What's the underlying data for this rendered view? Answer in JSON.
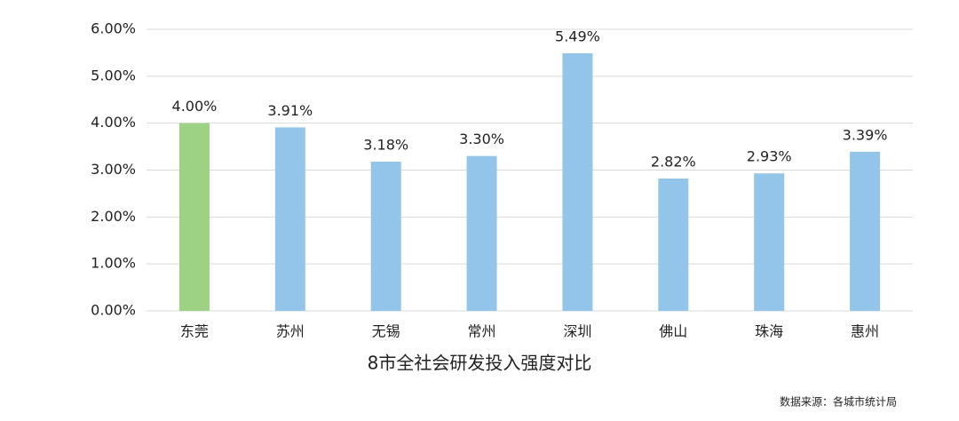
{
  "chart_data": {
    "type": "bar",
    "title": "8市全社会研发投入强度对比",
    "source": "数据来源：各城市统计局",
    "categories": [
      "东莞",
      "苏州",
      "无锡",
      "常州",
      "深圳",
      "佛山",
      "珠海",
      "惠州"
    ],
    "values": [
      4.0,
      3.91,
      3.18,
      3.3,
      5.49,
      2.82,
      2.93,
      3.39
    ],
    "value_labels": [
      "4.00%",
      "3.91%",
      "3.18%",
      "3.30%",
      "5.49%",
      "2.82%",
      "2.93%",
      "3.39%"
    ],
    "colors": [
      "#9dd183",
      "#93c5ea",
      "#93c5ea",
      "#93c5ea",
      "#93c5ea",
      "#93c5ea",
      "#93c5ea",
      "#93c5ea"
    ],
    "ylim": [
      0,
      6
    ],
    "yticks": [
      {
        "value": 0,
        "label": "0.00%"
      },
      {
        "value": 1,
        "label": "1.00%"
      },
      {
        "value": 2,
        "label": "2.00%"
      },
      {
        "value": 3,
        "label": "3.00%"
      },
      {
        "value": 4,
        "label": "4.00%"
      },
      {
        "value": 5,
        "label": "5.00%"
      },
      {
        "value": 6,
        "label": "6.00%"
      }
    ],
    "grid": true
  }
}
